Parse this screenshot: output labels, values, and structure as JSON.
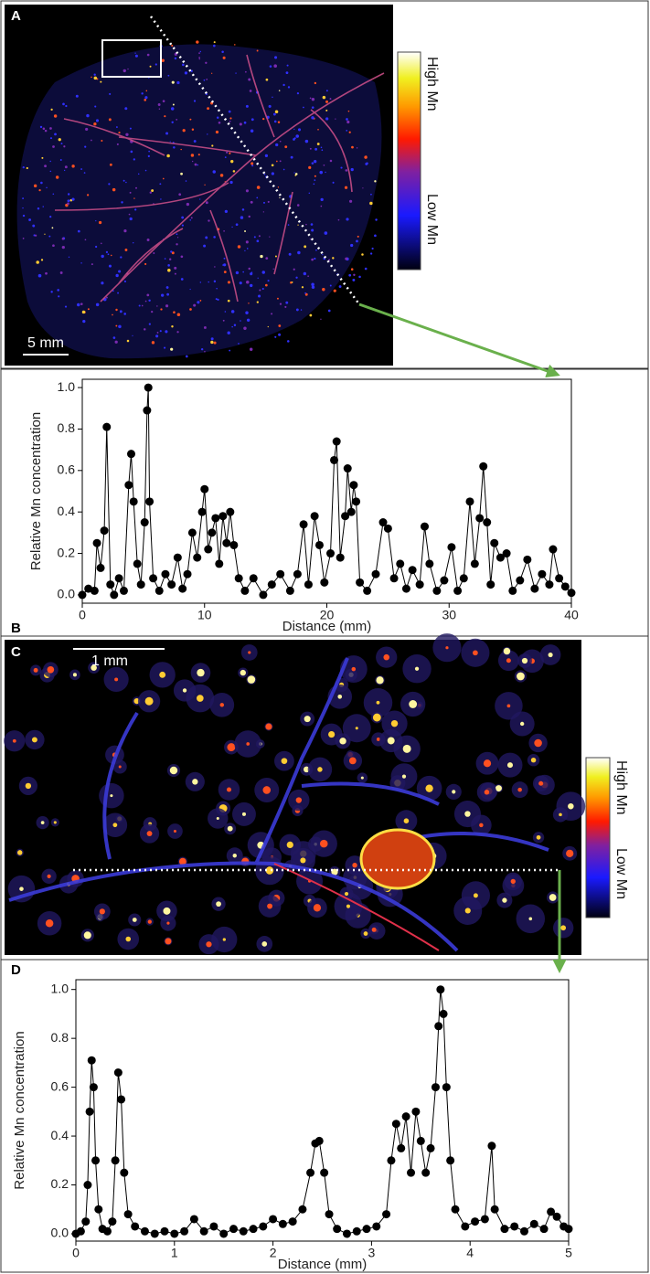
{
  "images": [
    {
      "label": "A",
      "scale_bar": "5 mm",
      "colorbar_high": "High Mn",
      "colorbar_low": "Low Mn"
    },
    {
      "label": "C",
      "scale_bar": "1 mm",
      "colorbar_high": "High Mn",
      "colorbar_low": "Low Mn"
    }
  ],
  "chart_data": [
    {
      "type": "line",
      "label": "B",
      "markers": true,
      "color": "#000000",
      "xlabel": "Distance (mm)",
      "ylabel": "Relative Mn concentration",
      "xlim": [
        0,
        40
      ],
      "xticks": [
        0,
        10,
        20,
        30,
        40
      ],
      "ylim": [
        -0.04,
        1.04
      ],
      "yticks": [
        {
          "value": 0,
          "label": "0.0"
        },
        0.2,
        0.4,
        0.6,
        0.8,
        {
          "value": 1,
          "label": "1.0"
        }
      ],
      "x": [
        0,
        0.5,
        1.0,
        1.2,
        1.5,
        1.8,
        2.0,
        2.3,
        2.6,
        3.0,
        3.4,
        3.8,
        4.0,
        4.2,
        4.5,
        4.8,
        5.1,
        5.3,
        5.4,
        5.5,
        5.8,
        6.3,
        6.8,
        7.3,
        7.8,
        8.2,
        8.6,
        9.0,
        9.4,
        9.8,
        10.0,
        10.3,
        10.6,
        10.9,
        11.2,
        11.5,
        11.8,
        12.1,
        12.4,
        12.8,
        13.3,
        14,
        14.8,
        15.5,
        16.2,
        17,
        17.6,
        18.1,
        18.5,
        19.0,
        19.4,
        19.8,
        20.3,
        20.6,
        20.8,
        21.1,
        21.5,
        21.7,
        22.0,
        22.2,
        22.4,
        22.7,
        23.3,
        24.0,
        24.6,
        25.0,
        25.5,
        26.0,
        26.5,
        27.0,
        27.6,
        28.0,
        28.4,
        29.0,
        29.6,
        30.2,
        30.7,
        31.2,
        31.7,
        32.1,
        32.5,
        32.8,
        33.1,
        33.4,
        33.7,
        34.2,
        34.7,
        35.2,
        35.8,
        36.4,
        37.0,
        37.6,
        38.2,
        38.5,
        39.0,
        39.5,
        40.0
      ],
      "values": [
        0,
        0.03,
        0.02,
        0.25,
        0.13,
        0.31,
        0.81,
        0.05,
        0,
        0.08,
        0.02,
        0.53,
        0.68,
        0.45,
        0.15,
        0.05,
        0.35,
        0.89,
        1.0,
        0.45,
        0.08,
        0.02,
        0.1,
        0.05,
        0.18,
        0.03,
        0.1,
        0.3,
        0.18,
        0.4,
        0.51,
        0.22,
        0.3,
        0.37,
        0.15,
        0.38,
        0.25,
        0.4,
        0.24,
        0.08,
        0.02,
        0.08,
        0,
        0.05,
        0.1,
        0.02,
        0.1,
        0.34,
        0.05,
        0.38,
        0.24,
        0.06,
        0.2,
        0.65,
        0.74,
        0.18,
        0.38,
        0.61,
        0.4,
        0.53,
        0.45,
        0.06,
        0.02,
        0.1,
        0.35,
        0.32,
        0.08,
        0.15,
        0.03,
        0.12,
        0.05,
        0.33,
        0.15,
        0.02,
        0.07,
        0.23,
        0.02,
        0.08,
        0.45,
        0.15,
        0.37,
        0.62,
        0.35,
        0.05,
        0.25,
        0.18,
        0.2,
        0.02,
        0.07,
        0.17,
        0.03,
        0.1,
        0.05,
        0.22,
        0.08,
        0.04,
        0.01
      ]
    },
    {
      "type": "line",
      "label": "D",
      "markers": true,
      "color": "#000000",
      "xlabel": "Distance (mm)",
      "ylabel": "Relative Mn concentration",
      "xlim": [
        0,
        5
      ],
      "xticks": [
        0,
        1,
        2,
        3,
        4,
        5
      ],
      "ylim": [
        -0.03,
        1.04
      ],
      "yticks": [
        {
          "value": 0,
          "label": "0.0"
        },
        0.2,
        0.4,
        0.6,
        0.8,
        {
          "value": 1,
          "label": "1.0"
        }
      ],
      "x": [
        0,
        0.05,
        0.1,
        0.12,
        0.14,
        0.16,
        0.18,
        0.2,
        0.23,
        0.27,
        0.32,
        0.37,
        0.4,
        0.43,
        0.46,
        0.49,
        0.53,
        0.6,
        0.7,
        0.8,
        0.9,
        1.0,
        1.1,
        1.2,
        1.3,
        1.4,
        1.5,
        1.6,
        1.7,
        1.8,
        1.9,
        2.0,
        2.1,
        2.2,
        2.3,
        2.38,
        2.43,
        2.47,
        2.52,
        2.57,
        2.65,
        2.75,
        2.85,
        2.95,
        3.05,
        3.15,
        3.2,
        3.25,
        3.3,
        3.35,
        3.4,
        3.45,
        3.5,
        3.55,
        3.6,
        3.65,
        3.68,
        3.7,
        3.73,
        3.76,
        3.8,
        3.85,
        3.95,
        4.05,
        4.15,
        4.22,
        4.25,
        4.35,
        4.45,
        4.55,
        4.65,
        4.75,
        4.82,
        4.88,
        4.95,
        5.0
      ],
      "values": [
        0,
        0.01,
        0.05,
        0.2,
        0.5,
        0.71,
        0.6,
        0.3,
        0.1,
        0.02,
        0.01,
        0.05,
        0.3,
        0.66,
        0.55,
        0.25,
        0.08,
        0.03,
        0.01,
        0,
        0.01,
        0,
        0.01,
        0.06,
        0.01,
        0.03,
        0,
        0.02,
        0.01,
        0.02,
        0.03,
        0.06,
        0.04,
        0.05,
        0.1,
        0.25,
        0.37,
        0.38,
        0.25,
        0.08,
        0.02,
        0,
        0.01,
        0.02,
        0.03,
        0.08,
        0.3,
        0.45,
        0.35,
        0.48,
        0.25,
        0.5,
        0.38,
        0.25,
        0.35,
        0.6,
        0.85,
        1.0,
        0.9,
        0.6,
        0.3,
        0.1,
        0.03,
        0.05,
        0.06,
        0.36,
        0.1,
        0.02,
        0.03,
        0.01,
        0.04,
        0.02,
        0.09,
        0.07,
        0.03,
        0.02
      ]
    }
  ]
}
